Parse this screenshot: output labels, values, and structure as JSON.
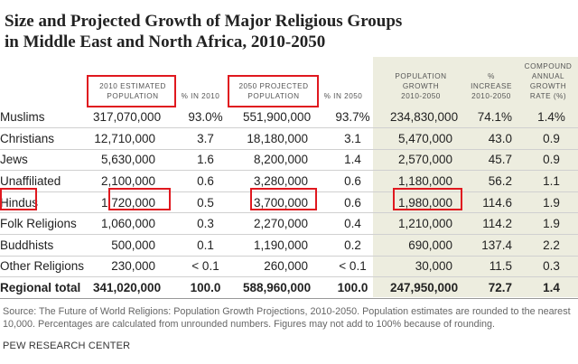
{
  "title": {
    "line1": "Size and Projected Growth of Major Religious Groups",
    "line2": "in Middle East and North Africa, 2010-2050"
  },
  "headers": [
    [
      "2010 ESTIMATED",
      "POPULATION"
    ],
    [
      "% IN 2010"
    ],
    [
      "2050 PROJECTED",
      "POPULATION"
    ],
    [
      "% IN 2050"
    ],
    [
      "POPULATION",
      "GROWTH",
      "2010-2050"
    ],
    [
      "%",
      "INCREASE",
      "2010-2050"
    ],
    [
      "COMPOUND",
      "ANNUAL",
      "GROWTH",
      "RATE (%)"
    ]
  ],
  "rows": [
    [
      "Muslims",
      "317,070,000",
      "93.0%",
      "551,900,000",
      "93.7%",
      "234,830,000",
      "74.1%",
      "1.4%"
    ],
    [
      "Christians",
      "12,710,000",
      "3.7",
      "18,180,000",
      "3.1",
      "5,470,000",
      "43.0",
      "0.9"
    ],
    [
      "Jews",
      "5,630,000",
      "1.6",
      "8,200,000",
      "1.4",
      "2,570,000",
      "45.7",
      "0.9"
    ],
    [
      "Unaffiliated",
      "2,100,000",
      "0.6",
      "3,280,000",
      "0.6",
      "1,180,000",
      "56.2",
      "1.1"
    ],
    [
      "Hindus",
      "1,720,000",
      "0.5",
      "3,700,000",
      "0.6",
      "1,980,000",
      "114.6",
      "1.9"
    ],
    [
      "Folk Religions",
      "1,060,000",
      "0.3",
      "2,270,000",
      "0.4",
      "1,210,000",
      "114.2",
      "1.9"
    ],
    [
      "Buddhists",
      "500,000",
      "0.1",
      "1,190,000",
      "0.2",
      "690,000",
      "137.4",
      "2.2"
    ],
    [
      "Other Religions",
      "230,000",
      "< 0.1",
      "260,000",
      "< 0.1",
      "30,000",
      "11.5",
      "0.3"
    ]
  ],
  "total": [
    "Regional total",
    "341,020,000",
    "100.0",
    "588,960,000",
    "100.0",
    "247,950,000",
    "72.7",
    "1.4"
  ],
  "source": "Source: The Future of World Religions: Population Growth Projections, 2010-2050. Population estimates are rounded to the nearest 10,000. Percentages are calculated from unrounded numbers. Figures may not add to 100% because of rounding.",
  "brand": "PEW RESEARCH CENTER",
  "colors": {
    "highlight": "#e0181f",
    "shaded_columns": "#ededdf"
  }
}
